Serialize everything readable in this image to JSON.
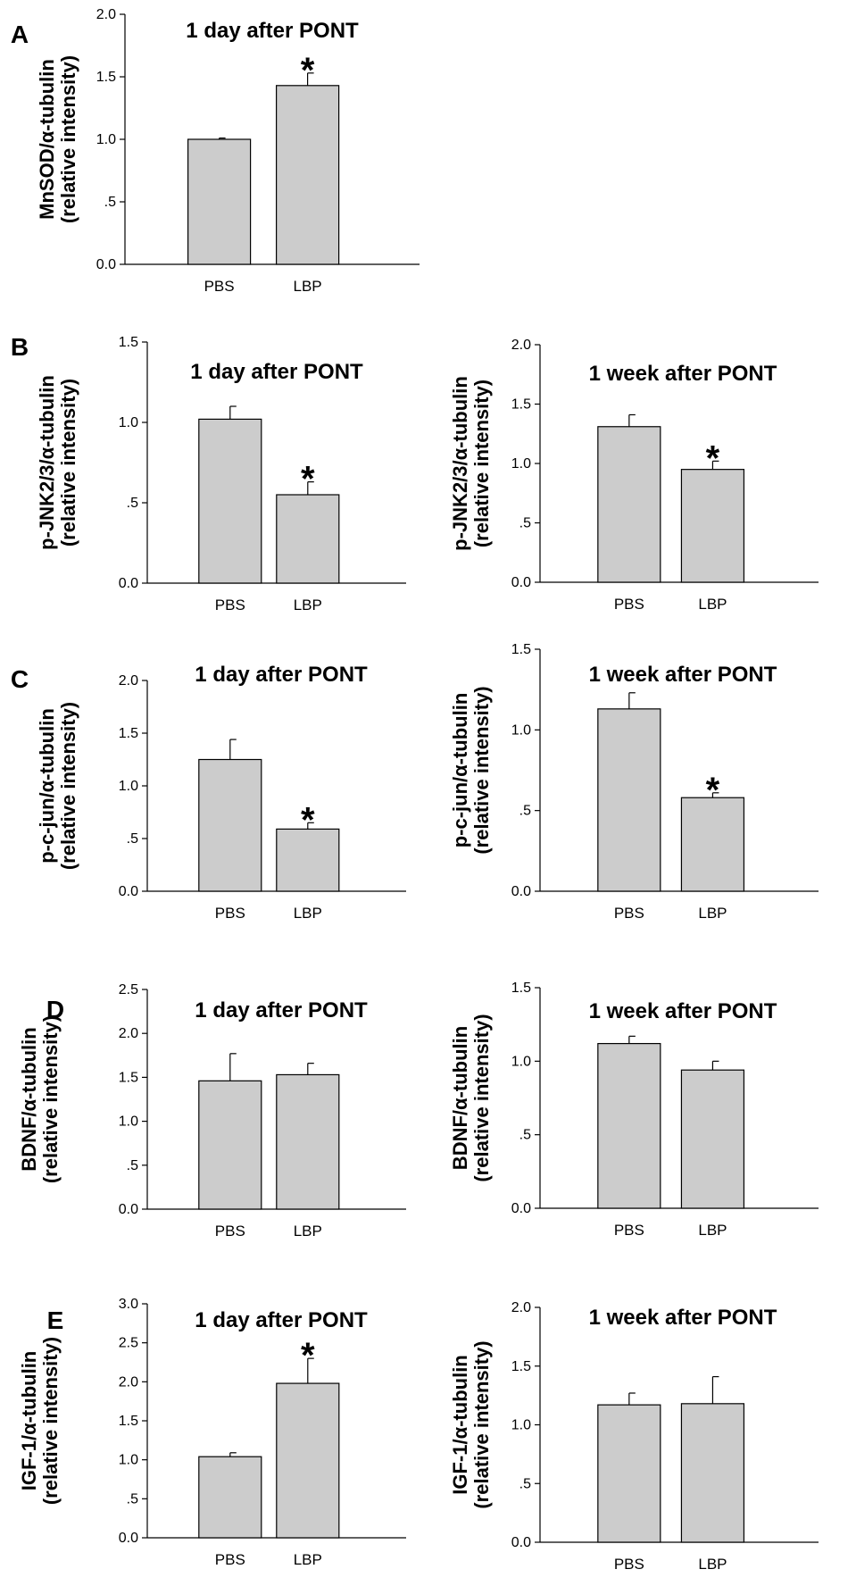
{
  "chart_data": [
    {
      "panel": "A",
      "type": "bar",
      "title": "1 day after PONT",
      "ylabel_line1": "MnSOD/α-tubulin",
      "ylabel_line2": "(relative intensity)",
      "categories": [
        "PBS",
        "LBP"
      ],
      "values": [
        1.0,
        1.43
      ],
      "errors": [
        0.01,
        0.1
      ],
      "significant": [
        false,
        true
      ],
      "ylim": [
        0,
        2.0
      ],
      "yticks": [
        0,
        0.5,
        1.0,
        1.5,
        2.0
      ],
      "ytick_labels": [
        "0.0",
        ".5",
        "1.0",
        "1.5",
        "2.0"
      ]
    },
    {
      "panel": "B",
      "type": "bar",
      "title": "1 day after PONT",
      "ylabel_line1": "p-JNK2/3/α-tubulin",
      "ylabel_line2": "(relative intensity)",
      "categories": [
        "PBS",
        "LBP"
      ],
      "values": [
        1.02,
        0.55
      ],
      "errors": [
        0.08,
        0.08
      ],
      "significant": [
        false,
        true
      ],
      "ylim": [
        0,
        1.5
      ],
      "yticks": [
        0,
        0.5,
        1.0,
        1.5
      ],
      "ytick_labels": [
        "0.0",
        ".5",
        "1.0",
        "1.5"
      ]
    },
    {
      "panel": "",
      "type": "bar",
      "title": "1 week after PONT",
      "ylabel_line1": "p-JNK2/3/α-tubulin",
      "ylabel_line2": "(relative intensity)",
      "categories": [
        "PBS",
        "LBP"
      ],
      "values": [
        1.31,
        0.95
      ],
      "errors": [
        0.1,
        0.07
      ],
      "significant": [
        false,
        true
      ],
      "ylim": [
        0,
        2.0
      ],
      "yticks": [
        0,
        0.5,
        1.0,
        1.5,
        2.0
      ],
      "ytick_labels": [
        "0.0",
        ".5",
        "1.0",
        "1.5",
        "2.0"
      ]
    },
    {
      "panel": "C",
      "type": "bar",
      "title": "1 day after PONT",
      "ylabel_line1": "p-c-jun/α-tubulin",
      "ylabel_line2": "(relative intensity)",
      "categories": [
        "PBS",
        "LBP"
      ],
      "values": [
        1.25,
        0.59
      ],
      "errors": [
        0.19,
        0.06
      ],
      "significant": [
        false,
        true
      ],
      "ylim": [
        0,
        2.0
      ],
      "yticks": [
        0,
        0.5,
        1.0,
        1.5,
        2.0
      ],
      "ytick_labels": [
        "0.0",
        ".5",
        "1.0",
        "1.5",
        "2.0"
      ]
    },
    {
      "panel": "",
      "type": "bar",
      "title": "1 week after PONT",
      "ylabel_line1": "p-c-jun/α-tubulin",
      "ylabel_line2": "(relative intensity)",
      "categories": [
        "PBS",
        "LBP"
      ],
      "values": [
        1.13,
        0.58
      ],
      "errors": [
        0.1,
        0.03
      ],
      "significant": [
        false,
        true
      ],
      "ylim": [
        0,
        1.5
      ],
      "yticks": [
        0,
        0.5,
        1.0,
        1.5
      ],
      "ytick_labels": [
        "0.0",
        ".5",
        "1.0",
        "1.5"
      ]
    },
    {
      "panel": "D",
      "type": "bar",
      "title": "1 day after PONT",
      "ylabel_line1": "BDNF/α-tubulin",
      "ylabel_line2": "(relative intensity)",
      "categories": [
        "PBS",
        "LBP"
      ],
      "values": [
        1.46,
        1.53
      ],
      "errors": [
        0.31,
        0.13
      ],
      "significant": [
        false,
        false
      ],
      "ylim": [
        0,
        2.5
      ],
      "yticks": [
        0,
        0.5,
        1.0,
        1.5,
        2.0,
        2.5
      ],
      "ytick_labels": [
        "0.0",
        ".5",
        "1.0",
        "1.5",
        "2.0",
        "2.5"
      ]
    },
    {
      "panel": "",
      "type": "bar",
      "title": "1 week after PONT",
      "ylabel_line1": "BDNF/α-tubulin",
      "ylabel_line2": "(relative intensity)",
      "categories": [
        "PBS",
        "LBP"
      ],
      "values": [
        1.12,
        0.94
      ],
      "errors": [
        0.05,
        0.06
      ],
      "significant": [
        false,
        false
      ],
      "ylim": [
        0,
        1.5
      ],
      "yticks": [
        0,
        0.5,
        1.0,
        1.5
      ],
      "ytick_labels": [
        "0.0",
        ".5",
        "1.0",
        "1.5"
      ]
    },
    {
      "panel": "E",
      "type": "bar",
      "title": "1 day after PONT",
      "ylabel_line1": "IGF-1/α-tubulin",
      "ylabel_line2": "(relative intensity)",
      "categories": [
        "PBS",
        "LBP"
      ],
      "values": [
        1.04,
        1.98
      ],
      "errors": [
        0.05,
        0.32
      ],
      "significant": [
        false,
        true
      ],
      "ylim": [
        0,
        3.0
      ],
      "yticks": [
        0,
        0.5,
        1.0,
        1.5,
        2.0,
        2.5,
        3.0
      ],
      "ytick_labels": [
        "0.0",
        ".5",
        "1.0",
        "1.5",
        "2.0",
        "2.5",
        "3.0"
      ]
    },
    {
      "panel": "",
      "type": "bar",
      "title": "1 week after PONT",
      "ylabel_line1": "IGF-1/α-tubulin",
      "ylabel_line2": "(relative intensity)",
      "categories": [
        "PBS",
        "LBP"
      ],
      "values": [
        1.17,
        1.18
      ],
      "errors": [
        0.1,
        0.23
      ],
      "significant": [
        false,
        false
      ],
      "ylim": [
        0,
        2.0
      ],
      "yticks": [
        0,
        0.5,
        1.0,
        1.5,
        2.0
      ],
      "ytick_labels": [
        "0.0",
        ".5",
        "1.0",
        "1.5",
        "2.0"
      ]
    }
  ],
  "significance_marker": "*",
  "colors": {
    "bar_fill": "#cccccc",
    "bar_stroke": "#000000",
    "axis": "#000000"
  }
}
